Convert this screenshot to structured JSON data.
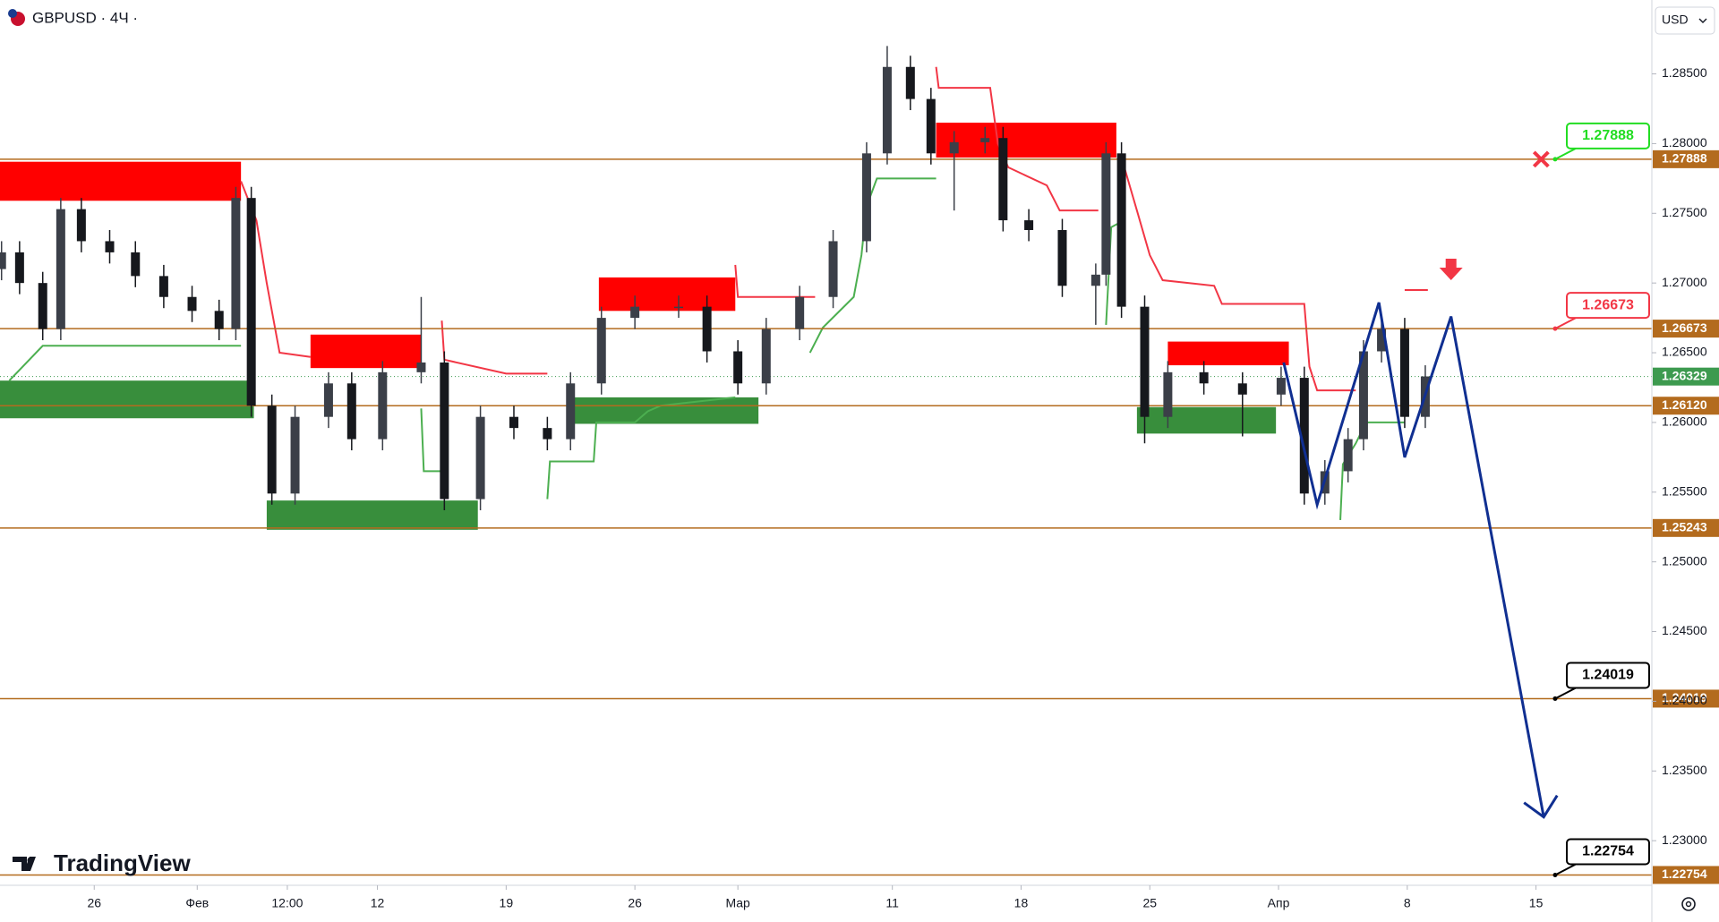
{
  "header": {
    "symbol": "GBPUSD · 4Ч ·",
    "currency": "USD",
    "logo": "TradingView"
  },
  "chart_data": {
    "type": "candlestick",
    "x": [
      -3.6,
      -2.9,
      -2.0,
      -1.3,
      -0.5,
      0.6,
      1.6,
      2.7,
      3.8,
      4.85,
      5.5,
      6.1,
      6.9,
      7.8,
      9.1,
      10,
      11.2,
      12.7,
      13.6,
      15,
      16.3,
      17.6,
      18.5,
      19.7,
      21,
      22.7,
      23.8,
      25,
      26.1,
      27.4,
      28.7,
      30,
      30.8,
      31.7,
      32.5,
      33.4,
      34.6,
      35.3,
      36.3,
      37.6,
      38.9,
      39.3,
      39.9,
      40.8,
      41.7,
      43.1,
      44.6,
      46.1,
      47,
      47.8,
      48.7,
      49.3,
      50,
      50.9,
      51.7
    ],
    "open": [
      1.271,
      1.2722,
      1.27,
      1.2667,
      1.2753,
      1.273,
      1.2722,
      1.2705,
      1.269,
      1.268,
      1.2667,
      1.2761,
      1.2612,
      1.2549,
      1.2604,
      1.2628,
      1.2588,
      1.2636,
      1.2643,
      1.2545,
      1.2604,
      1.2596,
      1.2588,
      1.2628,
      1.2675,
      1.2683,
      1.2683,
      1.2651,
      1.2628,
      1.2667,
      1.269,
      1.273,
      1.2793,
      1.2855,
      1.2832,
      1.2793,
      1.2801,
      1.2804,
      1.2745,
      1.2738,
      1.2698,
      1.2706,
      1.2793,
      1.2683,
      1.2604,
      1.2636,
      1.2628,
      1.262,
      1.2632,
      1.2549,
      1.2565,
      1.2588,
      1.2651,
      1.2667,
      1.2604
    ],
    "high": [
      1.273,
      1.273,
      1.2708,
      1.2761,
      1.2761,
      1.2738,
      1.273,
      1.2713,
      1.2698,
      1.2688,
      1.2769,
      1.2769,
      1.262,
      1.2612,
      1.2636,
      1.2636,
      1.2644,
      1.269,
      1.2651,
      1.2612,
      1.2612,
      1.2604,
      1.2636,
      1.2683,
      1.2691,
      1.2691,
      1.2691,
      1.2659,
      1.2675,
      1.2698,
      1.2738,
      1.2801,
      1.287,
      1.2863,
      1.284,
      1.2809,
      1.2812,
      1.2812,
      1.2753,
      1.2746,
      1.2714,
      1.2801,
      1.2801,
      1.2691,
      1.2644,
      1.2644,
      1.2636,
      1.264,
      1.264,
      1.2573,
      1.2596,
      1.2659,
      1.2675,
      1.2675,
      1.2641
    ],
    "low": [
      1.2702,
      1.2692,
      1.2659,
      1.2659,
      1.2722,
      1.2714,
      1.2697,
      1.2682,
      1.2672,
      1.2659,
      1.2659,
      1.2604,
      1.2541,
      1.2541,
      1.2596,
      1.258,
      1.258,
      1.2628,
      1.2537,
      1.2537,
      1.2588,
      1.258,
      1.258,
      1.262,
      1.2667,
      1.2675,
      1.2643,
      1.262,
      1.262,
      1.2659,
      1.2682,
      1.2722,
      1.2785,
      1.2824,
      1.2785,
      1.2752,
      1.2793,
      1.2737,
      1.273,
      1.269,
      1.267,
      1.2698,
      1.2675,
      1.2585,
      1.2596,
      1.262,
      1.259,
      1.2612,
      1.2541,
      1.2541,
      1.2557,
      1.258,
      1.2643,
      1.2596,
      1.2596
    ],
    "close": [
      1.2722,
      1.27,
      1.2667,
      1.2753,
      1.273,
      1.2722,
      1.2705,
      1.269,
      1.268,
      1.2667,
      1.2761,
      1.2612,
      1.2549,
      1.2604,
      1.2628,
      1.2588,
      1.2636,
      1.2643,
      1.2545,
      1.2604,
      1.2596,
      1.2588,
      1.2628,
      1.2675,
      1.2683,
      1.2683,
      1.2651,
      1.2628,
      1.2667,
      1.269,
      1.273,
      1.2793,
      1.2855,
      1.2832,
      1.2793,
      1.2801,
      1.2804,
      1.2745,
      1.2738,
      1.2698,
      1.2706,
      1.2793,
      1.2683,
      1.2604,
      1.2636,
      1.2628,
      1.262,
      1.2632,
      1.2549,
      1.2565,
      1.2588,
      1.2651,
      1.2667,
      1.2604,
      1.2633
    ],
    "up_color": "#3b3f48",
    "down_color": "#16181d",
    "xlim": [
      -3.66,
      60.5
    ],
    "xticks": [
      {
        "value": 0,
        "label": "26"
      },
      {
        "value": 4,
        "label": "Фев"
      },
      {
        "value": 7.5,
        "label": "12:00"
      },
      {
        "value": 11,
        "label": "12"
      },
      {
        "value": 16,
        "label": "19"
      },
      {
        "value": 21,
        "label": "26"
      },
      {
        "value": 25,
        "label": "Мар"
      },
      {
        "value": 31,
        "label": "11"
      },
      {
        "value": 36,
        "label": "18"
      },
      {
        "value": 41,
        "label": "25"
      },
      {
        "value": 46,
        "label": "Апр"
      },
      {
        "value": 51,
        "label": "8"
      },
      {
        "value": 56,
        "label": "15"
      }
    ],
    "ylim": [
      1.2268,
      1.2903
    ],
    "yticks": [
      {
        "value": 1.285,
        "label": "1.28500"
      },
      {
        "value": 1.28,
        "label": "1.28000"
      },
      {
        "value": 1.275,
        "label": "1.27500"
      },
      {
        "value": 1.27,
        "label": "1.27000"
      },
      {
        "value": 1.265,
        "label": "1.26500"
      },
      {
        "value": 1.26,
        "label": "1.26000"
      },
      {
        "value": 1.255,
        "label": "1.25500"
      },
      {
        "value": 1.25,
        "label": "1.25000"
      },
      {
        "value": 1.245,
        "label": "1.24500"
      },
      {
        "value": 1.24,
        "label": "1.24000"
      },
      {
        "value": 1.235,
        "label": "1.23500"
      },
      {
        "value": 1.23,
        "label": "1.23000"
      }
    ],
    "levels": [
      {
        "value": 1.27888,
        "callout_color": "#22dd22"
      },
      {
        "value": 1.26673,
        "callout_color": "#f23645"
      },
      {
        "value": 1.2612,
        "label": "1.26120"
      },
      {
        "value": 1.25243
      },
      {
        "value": 1.24019,
        "callout_color": "#000000"
      },
      {
        "value": 1.22754,
        "callout_color": "#000000"
      }
    ],
    "level_color": "#b36b1e",
    "current_price": {
      "value": 1.26329,
      "color": "#3d9a4f"
    },
    "zones": [
      {
        "x": [
          -3.66,
          5.7
        ],
        "y": [
          1.2759,
          1.2787
        ],
        "color": "#ff0000"
      },
      {
        "x": [
          -3.66,
          6.2
        ],
        "y": [
          1.2603,
          1.263
        ],
        "color": "#388e3c"
      },
      {
        "x": [
          8.4,
          12.7
        ],
        "y": [
          1.2639,
          1.2663
        ],
        "color": "#ff0000"
      },
      {
        "x": [
          6.7,
          14.9
        ],
        "y": [
          1.2523,
          1.2544
        ],
        "color": "#388e3c"
      },
      {
        "x": [
          19.6,
          24.9
        ],
        "y": [
          1.268,
          1.2704
        ],
        "color": "#ff0000"
      },
      {
        "x": [
          18.6,
          25.8
        ],
        "y": [
          1.2599,
          1.2618
        ],
        "color": "#388e3c"
      },
      {
        "x": [
          32.7,
          39.7
        ],
        "y": [
          1.279,
          1.2815
        ],
        "color": "#ff0000"
      },
      {
        "x": [
          41.7,
          46.4
        ],
        "y": [
          1.2641,
          1.2658
        ],
        "color": "#ff0000"
      },
      {
        "x": [
          40.5,
          45.9
        ],
        "y": [
          1.2592,
          1.2611
        ],
        "color": "#388e3c"
      }
    ],
    "trail_lines": [
      {
        "color": "#f23645",
        "x": [
          5.7,
          6.3,
          6.7,
          7.2,
          8.4
        ],
        "y": [
          1.2773,
          1.2745,
          1.27,
          1.265,
          1.2647
        ]
      },
      {
        "color": "#f23645",
        "x": [
          13.5,
          13.6,
          16,
          17.6
        ],
        "y": [
          1.2673,
          1.2645,
          1.2635,
          1.2635
        ]
      },
      {
        "color": "#f23645",
        "x": [
          24.9,
          25,
          27,
          28
        ],
        "y": [
          1.2713,
          1.269,
          1.269,
          1.269
        ]
      },
      {
        "color": "#f23645",
        "x": [
          32.7,
          32.8,
          34.8,
          35.1,
          35.5,
          37,
          37.5,
          39
        ],
        "y": [
          1.2855,
          1.284,
          1.284,
          1.28,
          1.2783,
          1.277,
          1.2752,
          1.2752
        ]
      },
      {
        "color": "#f23645",
        "x": [
          39.9,
          40.5,
          41,
          41.5,
          43.5,
          43.8,
          47,
          47.2,
          47.5,
          49
        ],
        "y": [
          1.279,
          1.2752,
          1.272,
          1.2702,
          1.2698,
          1.2685,
          1.2685,
          1.264,
          1.2623,
          1.2623
        ]
      },
      {
        "color": "#f23645",
        "x": [
          50.9,
          51.8
        ],
        "y": [
          1.2695,
          1.2695
        ]
      },
      {
        "color": "#4caf50",
        "x": [
          -3.3,
          -2,
          5.7
        ],
        "y": [
          1.263,
          1.2655,
          1.2655
        ]
      },
      {
        "color": "#4caf50",
        "x": [
          12.7,
          12.8,
          13.5
        ],
        "y": [
          1.261,
          1.2565,
          1.2565
        ]
      },
      {
        "color": "#4caf50",
        "x": [
          17.6,
          17.7,
          19.4,
          19.5,
          21,
          21.5,
          22,
          24.9
        ],
        "y": [
          1.2545,
          1.2572,
          1.2572,
          1.26,
          1.26,
          1.2608,
          1.2612,
          1.2618
        ]
      },
      {
        "color": "#4caf50",
        "x": [
          27.8,
          28.3,
          29.5,
          29.8,
          30,
          30.4,
          32.7
        ],
        "y": [
          1.265,
          1.2668,
          1.269,
          1.272,
          1.2755,
          1.2775,
          1.2775
        ]
      },
      {
        "color": "#4caf50",
        "x": [
          39.3,
          39.5,
          40
        ],
        "y": [
          1.267,
          1.274,
          1.2745
        ]
      },
      {
        "color": "#4caf50",
        "x": [
          48.4,
          48.5,
          49,
          49.4,
          50.9
        ],
        "y": [
          1.253,
          1.257,
          1.2585,
          1.26,
          1.26
        ]
      }
    ],
    "projection": {
      "color": "#102f91",
      "x": [
        46.2,
        47.5,
        49.9,
        50.9,
        52.7,
        56.3
      ],
      "y": [
        1.2643,
        1.2541,
        1.2686,
        1.2575,
        1.2676,
        1.2317
      ]
    },
    "markers": [
      {
        "kind": "cross",
        "x": 56.2,
        "y": 1.27888,
        "color": "#f23645"
      },
      {
        "kind": "arrow-down",
        "x": 52.7,
        "y": 1.2702,
        "color": "#f23645"
      }
    ]
  }
}
